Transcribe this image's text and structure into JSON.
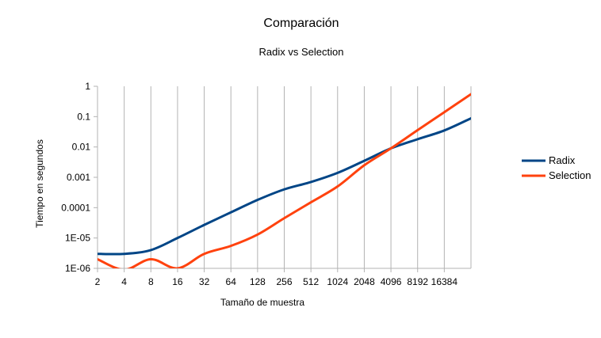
{
  "chart_data": {
    "type": "line",
    "title": "Comparación",
    "subtitle": "Radix vs Selection",
    "xlabel": "Tamaño de muestra",
    "ylabel": "Tiempo en segundos",
    "x_scale": "log2",
    "y_scale": "log10",
    "x_ticks": [
      "2",
      "4",
      "8",
      "16",
      "32",
      "64",
      "128",
      "256",
      "512",
      "1024",
      "2048",
      "4096",
      "8192",
      "16384"
    ],
    "y_ticks": [
      "1E-06",
      "1E-05",
      "0.0001",
      "0.001",
      "0.01",
      "0.1",
      "1"
    ],
    "xlim": [
      2,
      32768
    ],
    "ylim": [
      1e-06,
      1
    ],
    "legend_position": "right",
    "x": [
      2,
      4,
      8,
      16,
      32,
      64,
      128,
      256,
      512,
      1024,
      2048,
      4096,
      8192,
      16384,
      32768
    ],
    "series": [
      {
        "name": "Radix",
        "color": "#004586",
        "values": [
          3e-06,
          3e-06,
          4e-06,
          1e-05,
          2.7e-05,
          7e-05,
          0.00018,
          0.0004,
          0.0007,
          0.0014,
          0.0035,
          0.009,
          0.018,
          0.035,
          0.088
        ]
      },
      {
        "name": "Selection",
        "color": "#ff420e",
        "values": [
          2e-06,
          9e-07,
          2e-06,
          1e-06,
          3e-06,
          5.5e-06,
          1.3e-05,
          4.5e-05,
          0.00015,
          0.0005,
          0.0025,
          0.009,
          0.036,
          0.14,
          0.55
        ]
      }
    ],
    "grid": "vertical-only"
  }
}
